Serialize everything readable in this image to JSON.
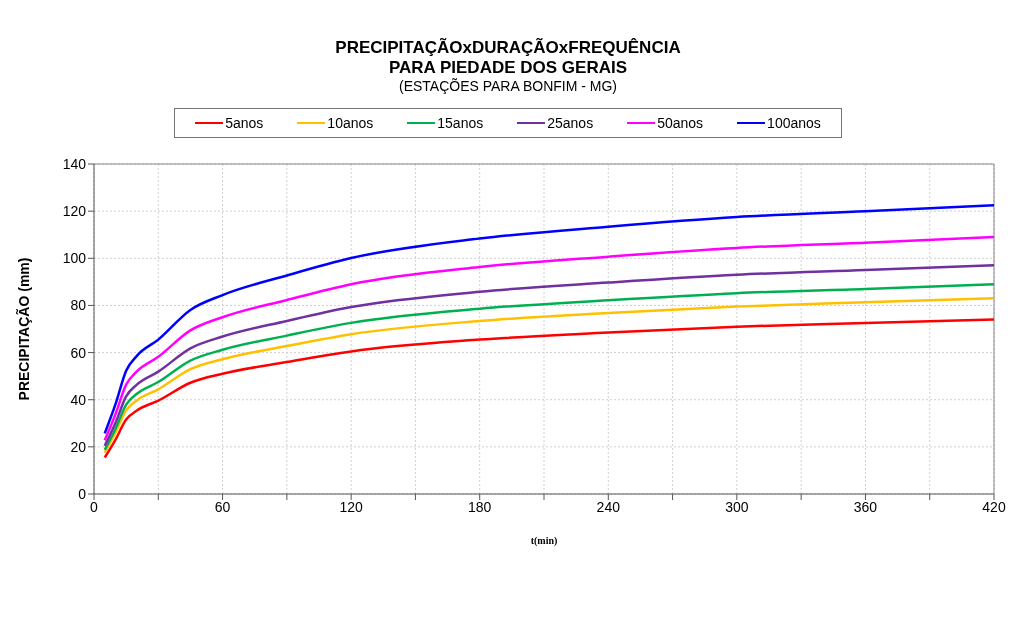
{
  "chart_data": {
    "type": "line",
    "title": "PRECIPITAÇÃOxDURAÇÃOxFREQUÊNCIA\nPARA PIEDADE DOS GERAIS",
    "subtitle": "(ESTAÇÕES PARA BONFIM - MG)",
    "xlabel": "t(min)",
    "ylabel": "PRECIPITAÇÃO (mm)",
    "x": [
      5,
      10,
      15,
      20,
      30,
      45,
      60,
      90,
      120,
      180,
      240,
      300,
      360,
      420
    ],
    "series": [
      {
        "name": "5anos",
        "color": "#ff0000",
        "values": [
          15.5,
          23,
          31.6,
          35.4,
          39.6,
          47.2,
          51,
          56,
          60.5,
          65.5,
          68.5,
          71,
          72.5,
          74
        ]
      },
      {
        "name": "10anos",
        "color": "#ffc000",
        "values": [
          17.5,
          26,
          35.5,
          39.7,
          44.4,
          53,
          57.2,
          62.8,
          67.8,
          73.4,
          76.8,
          79.5,
          81.3,
          83
        ]
      },
      {
        "name": "15anos",
        "color": "#00b050",
        "values": [
          18.7,
          27.6,
          37.9,
          42.5,
          47.5,
          56.6,
          61.2,
          67.2,
          72.6,
          78.6,
          82.2,
          85.2,
          87,
          89
        ]
      },
      {
        "name": "25anos",
        "color": "#7030a0",
        "values": [
          20.4,
          30.1,
          41.4,
          46.4,
          51.9,
          61.8,
          66.8,
          73.4,
          79.3,
          85.8,
          89.7,
          93,
          95,
          97
        ]
      },
      {
        "name": "50anos",
        "color": "#ff00ff",
        "values": [
          22.8,
          33.8,
          46.4,
          52,
          58.2,
          69.4,
          75,
          82.3,
          89,
          96.3,
          100.7,
          104.4,
          106.6,
          109
        ]
      },
      {
        "name": "100anos",
        "color": "#0000ff",
        "values": [
          25.7,
          38,
          52.3,
          58.6,
          65.5,
          78.1,
          84.4,
          92.7,
          100.1,
          108.4,
          113.4,
          117.5,
          120,
          122.5
        ]
      }
    ],
    "xlim": [
      0,
      420
    ],
    "xticks": [
      0,
      {
        "value": 30,
        "label": null
      },
      60,
      {
        "value": 90,
        "label": null
      },
      120,
      {
        "value": 150,
        "label": null
      },
      180,
      {
        "value": 210,
        "label": null
      },
      240,
      {
        "value": 270,
        "label": null
      },
      300,
      {
        "value": 330,
        "label": null
      },
      360,
      {
        "value": 390,
        "label": null
      },
      420
    ],
    "ylim": [
      0,
      140
    ],
    "yticks": [
      0,
      20,
      40,
      60,
      80,
      100,
      120,
      140
    ],
    "grid": true,
    "legend": "top",
    "marker": "none",
    "line_style": "solid"
  }
}
